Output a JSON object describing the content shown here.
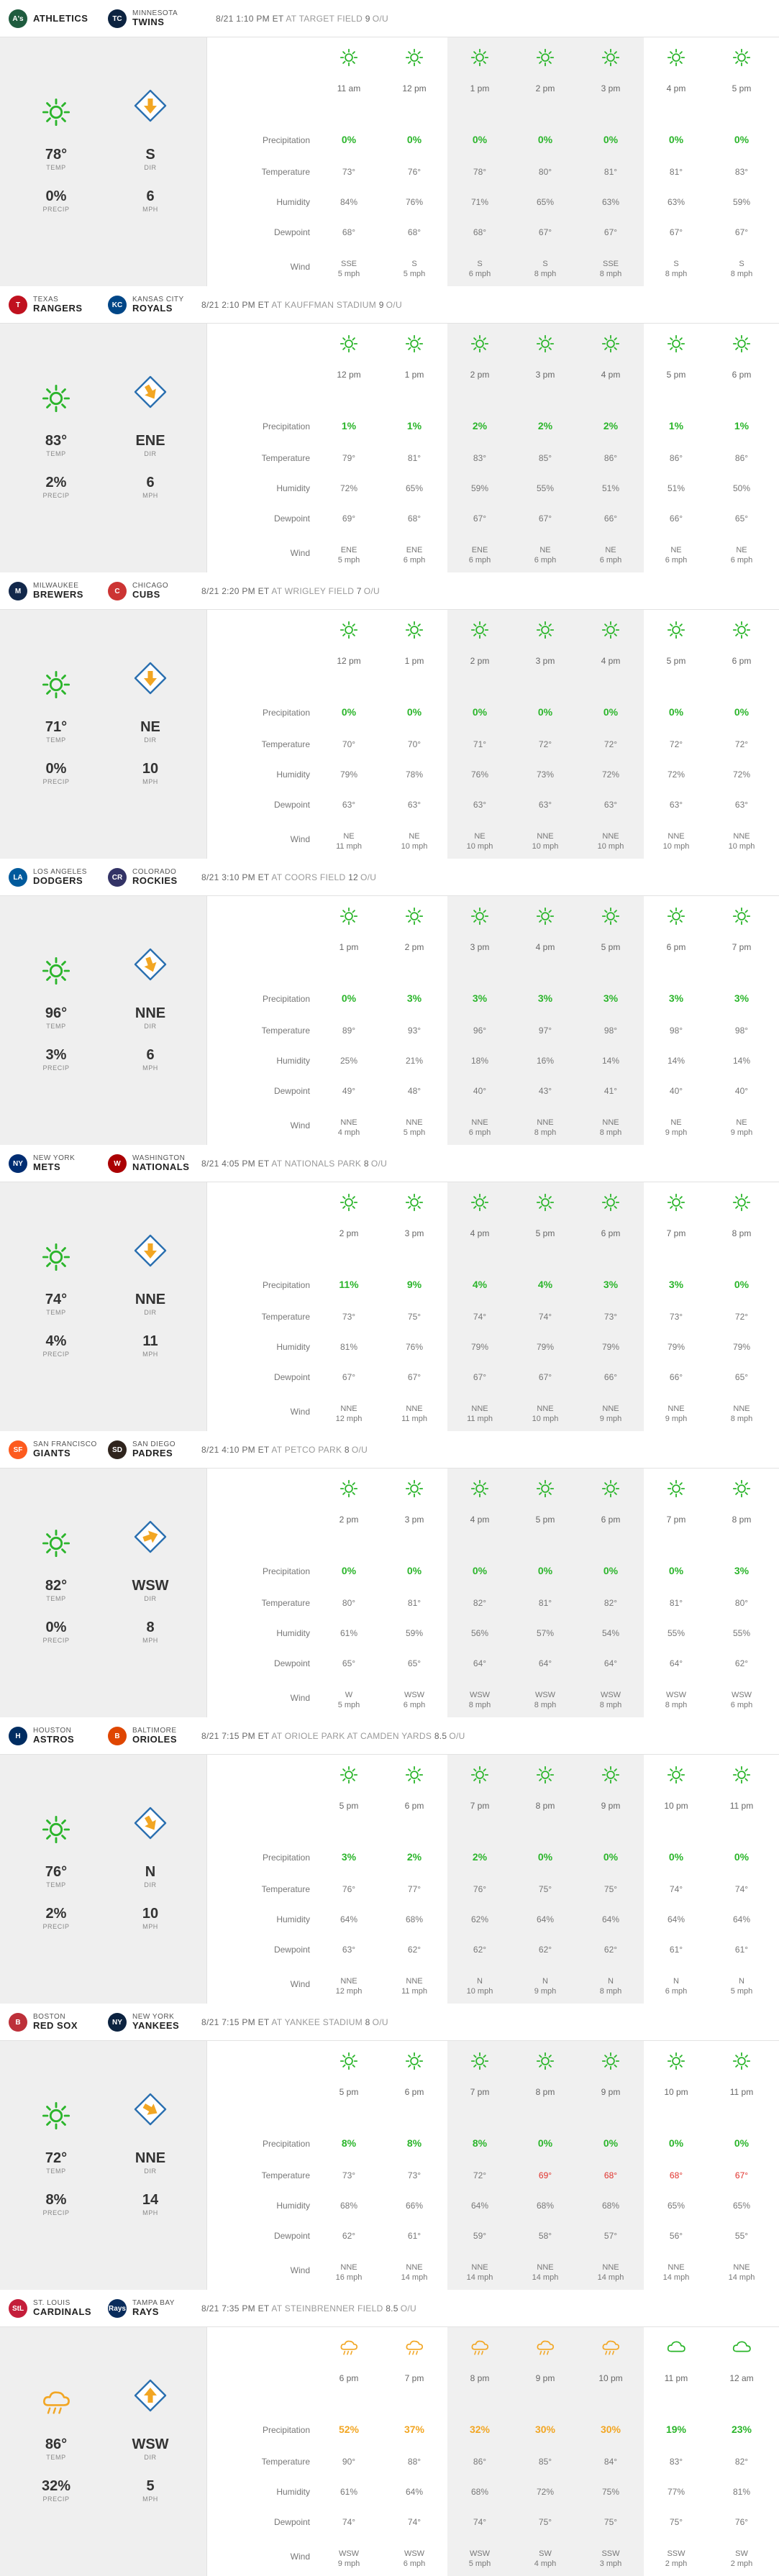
{
  "labels": {
    "temp": "TEMP",
    "precip": "PRECIP",
    "dir": "DIR",
    "mph": "MPH",
    "ou": "O/U",
    "rows": [
      "Precipitation",
      "Temperature",
      "Humidity",
      "Dewpoint",
      "Wind"
    ]
  },
  "colors": {
    "green": "#2bb52b",
    "orange": "#f2a623",
    "red": "#e0302a"
  },
  "games": [
    {
      "away": {
        "city": "",
        "nick": "ATHLETICS",
        "abbr": "A's",
        "color": "#1f5c3f"
      },
      "home": {
        "city": "MINNESOTA",
        "nick": "TWINS",
        "abbr": "TC",
        "color": "#0c2340"
      },
      "datetime": "8/21 1:10 PM ET",
      "venue": "AT TARGET FIELD",
      "ou": "9",
      "icon": "sun",
      "temp": "78°",
      "precip": "0%",
      "dir": "S",
      "mph": "6",
      "arrow": 0,
      "shade": [
        2,
        5
      ],
      "hours": [
        {
          "t": "11 am",
          "p": "0%",
          "tp": "73°",
          "h": "84%",
          "d": "68°",
          "w1": "SSE",
          "w2": "5 mph",
          "i": "sun"
        },
        {
          "t": "12 pm",
          "p": "0%",
          "tp": "76°",
          "h": "76%",
          "d": "68°",
          "w1": "S",
          "w2": "5 mph",
          "i": "sun"
        },
        {
          "t": "1 pm",
          "p": "0%",
          "tp": "78°",
          "h": "71%",
          "d": "68°",
          "w1": "S",
          "w2": "6 mph",
          "i": "sun"
        },
        {
          "t": "2 pm",
          "p": "0%",
          "tp": "80°",
          "h": "65%",
          "d": "67°",
          "w1": "S",
          "w2": "8 mph",
          "i": "sun"
        },
        {
          "t": "3 pm",
          "p": "0%",
          "tp": "81°",
          "h": "63%",
          "d": "67°",
          "w1": "SSE",
          "w2": "8 mph",
          "i": "sun"
        },
        {
          "t": "4 pm",
          "p": "0%",
          "tp": "81°",
          "h": "63%",
          "d": "67°",
          "w1": "S",
          "w2": "8 mph",
          "i": "sun"
        },
        {
          "t": "5 pm",
          "p": "0%",
          "tp": "83°",
          "h": "59%",
          "d": "67°",
          "w1": "S",
          "w2": "8 mph",
          "i": "sun"
        }
      ]
    },
    {
      "away": {
        "city": "TEXAS",
        "nick": "RANGERS",
        "abbr": "T",
        "color": "#c0111f"
      },
      "home": {
        "city": "KANSAS CITY",
        "nick": "ROYALS",
        "abbr": "KC",
        "color": "#004687"
      },
      "datetime": "8/21 2:10 PM ET",
      "venue": "AT KAUFFMAN STADIUM",
      "ou": "9",
      "icon": "sun",
      "temp": "83°",
      "precip": "2%",
      "dir": "ENE",
      "mph": "6",
      "arrow": -30,
      "shade": [
        2,
        5
      ],
      "hours": [
        {
          "t": "12 pm",
          "p": "1%",
          "tp": "79°",
          "h": "72%",
          "d": "69°",
          "w1": "ENE",
          "w2": "5 mph",
          "i": "sun"
        },
        {
          "t": "1 pm",
          "p": "1%",
          "tp": "81°",
          "h": "65%",
          "d": "68°",
          "w1": "ENE",
          "w2": "6 mph",
          "i": "sun"
        },
        {
          "t": "2 pm",
          "p": "2%",
          "tp": "83°",
          "h": "59%",
          "d": "67°",
          "w1": "ENE",
          "w2": "6 mph",
          "i": "sun"
        },
        {
          "t": "3 pm",
          "p": "2%",
          "tp": "85°",
          "h": "55%",
          "d": "67°",
          "w1": "NE",
          "w2": "6 mph",
          "i": "sun"
        },
        {
          "t": "4 pm",
          "p": "2%",
          "tp": "86°",
          "h": "51%",
          "d": "66°",
          "w1": "NE",
          "w2": "6 mph",
          "i": "sun"
        },
        {
          "t": "5 pm",
          "p": "1%",
          "tp": "86°",
          "h": "51%",
          "d": "66°",
          "w1": "NE",
          "w2": "6 mph",
          "i": "sun"
        },
        {
          "t": "6 pm",
          "p": "1%",
          "tp": "86°",
          "h": "50%",
          "d": "65°",
          "w1": "NE",
          "w2": "6 mph",
          "i": "sun"
        }
      ]
    },
    {
      "away": {
        "city": "MILWAUKEE",
        "nick": "BREWERS",
        "abbr": "M",
        "color": "#12284b"
      },
      "home": {
        "city": "CHICAGO",
        "nick": "CUBS",
        "abbr": "C",
        "color": "#cc3433"
      },
      "datetime": "8/21 2:20 PM ET",
      "venue": "AT WRIGLEY FIELD",
      "ou": "7",
      "icon": "sun",
      "temp": "71°",
      "precip": "0%",
      "dir": "NE",
      "mph": "10",
      "arrow": 0,
      "shade": [
        2,
        5
      ],
      "hours": [
        {
          "t": "12 pm",
          "p": "0%",
          "tp": "70°",
          "h": "79%",
          "d": "63°",
          "w1": "NE",
          "w2": "11 mph",
          "i": "sun"
        },
        {
          "t": "1 pm",
          "p": "0%",
          "tp": "70°",
          "h": "78%",
          "d": "63°",
          "w1": "NE",
          "w2": "10 mph",
          "i": "sun"
        },
        {
          "t": "2 pm",
          "p": "0%",
          "tp": "71°",
          "h": "76%",
          "d": "63°",
          "w1": "NE",
          "w2": "10 mph",
          "i": "sun"
        },
        {
          "t": "3 pm",
          "p": "0%",
          "tp": "72°",
          "h": "73%",
          "d": "63°",
          "w1": "NNE",
          "w2": "10 mph",
          "i": "sun"
        },
        {
          "t": "4 pm",
          "p": "0%",
          "tp": "72°",
          "h": "72%",
          "d": "63°",
          "w1": "NNE",
          "w2": "10 mph",
          "i": "sun"
        },
        {
          "t": "5 pm",
          "p": "0%",
          "tp": "72°",
          "h": "72%",
          "d": "63°",
          "w1": "NNE",
          "w2": "10 mph",
          "i": "sun"
        },
        {
          "t": "6 pm",
          "p": "0%",
          "tp": "72°",
          "h": "72%",
          "d": "63°",
          "w1": "NNE",
          "w2": "10 mph",
          "i": "sun"
        }
      ]
    },
    {
      "away": {
        "city": "LOS ANGELES",
        "nick": "DODGERS",
        "abbr": "LA",
        "color": "#005a9c"
      },
      "home": {
        "city": "COLORADO",
        "nick": "ROCKIES",
        "abbr": "CR",
        "color": "#333366"
      },
      "datetime": "8/21 3:10 PM ET",
      "venue": "AT COORS FIELD",
      "ou": "12",
      "icon": "sun",
      "temp": "96°",
      "precip": "3%",
      "dir": "NNE",
      "mph": "6",
      "arrow": -20,
      "shade": [
        2,
        5
      ],
      "hours": [
        {
          "t": "1 pm",
          "p": "0%",
          "tp": "89°",
          "h": "25%",
          "d": "49°",
          "w1": "NNE",
          "w2": "4 mph",
          "i": "sun"
        },
        {
          "t": "2 pm",
          "p": "3%",
          "tp": "93°",
          "h": "21%",
          "d": "48°",
          "w1": "NNE",
          "w2": "5 mph",
          "i": "sun"
        },
        {
          "t": "3 pm",
          "p": "3%",
          "tp": "96°",
          "h": "18%",
          "d": "40°",
          "w1": "NNE",
          "w2": "6 mph",
          "i": "sun"
        },
        {
          "t": "4 pm",
          "p": "3%",
          "tp": "97°",
          "h": "16%",
          "d": "43°",
          "w1": "NNE",
          "w2": "8 mph",
          "i": "sun"
        },
        {
          "t": "5 pm",
          "p": "3%",
          "tp": "98°",
          "h": "14%",
          "d": "41°",
          "w1": "NNE",
          "w2": "8 mph",
          "i": "sun"
        },
        {
          "t": "6 pm",
          "p": "3%",
          "tp": "98°",
          "h": "14%",
          "d": "40°",
          "w1": "NE",
          "w2": "9 mph",
          "i": "sun"
        },
        {
          "t": "7 pm",
          "p": "3%",
          "tp": "98°",
          "h": "14%",
          "d": "40°",
          "w1": "NE",
          "w2": "9 mph",
          "i": "sun"
        }
      ]
    },
    {
      "away": {
        "city": "NEW YORK",
        "nick": "METS",
        "abbr": "NY",
        "color": "#002d72"
      },
      "home": {
        "city": "WASHINGTON",
        "nick": "NATIONALS",
        "abbr": "W",
        "color": "#ab0003"
      },
      "datetime": "8/21 4:05 PM ET",
      "venue": "AT NATIONALS PARK",
      "ou": "8",
      "icon": "sun",
      "temp": "74°",
      "precip": "4%",
      "dir": "NNE",
      "mph": "11",
      "arrow": 0,
      "shade": [
        2,
        5
      ],
      "hours": [
        {
          "t": "2 pm",
          "p": "11%",
          "tp": "73°",
          "h": "81%",
          "d": "67°",
          "w1": "NNE",
          "w2": "12 mph",
          "i": "sun"
        },
        {
          "t": "3 pm",
          "p": "9%",
          "tp": "75°",
          "h": "76%",
          "d": "67°",
          "w1": "NNE",
          "w2": "11 mph",
          "i": "sun"
        },
        {
          "t": "4 pm",
          "p": "4%",
          "tp": "74°",
          "h": "79%",
          "d": "67°",
          "w1": "NNE",
          "w2": "11 mph",
          "i": "sun"
        },
        {
          "t": "5 pm",
          "p": "4%",
          "tp": "74°",
          "h": "79%",
          "d": "67°",
          "w1": "NNE",
          "w2": "10 mph",
          "i": "sun"
        },
        {
          "t": "6 pm",
          "p": "3%",
          "tp": "73°",
          "h": "79%",
          "d": "66°",
          "w1": "NNE",
          "w2": "9 mph",
          "i": "sun"
        },
        {
          "t": "7 pm",
          "p": "3%",
          "tp": "73°",
          "h": "79%",
          "d": "66°",
          "w1": "NNE",
          "w2": "9 mph",
          "i": "sun"
        },
        {
          "t": "8 pm",
          "p": "0%",
          "tp": "72°",
          "h": "79%",
          "d": "65°",
          "w1": "NNE",
          "w2": "8 mph",
          "i": "sun"
        }
      ]
    },
    {
      "away": {
        "city": "SAN FRANCISCO",
        "nick": "GIANTS",
        "abbr": "SF",
        "color": "#fd5a1e"
      },
      "home": {
        "city": "SAN DIEGO",
        "nick": "PADRES",
        "abbr": "SD",
        "color": "#2f241d"
      },
      "datetime": "8/21 4:10 PM ET",
      "venue": "AT PETCO PARK",
      "ou": "8",
      "icon": "sun",
      "temp": "82°",
      "precip": "0%",
      "dir": "WSW",
      "mph": "8",
      "arrow": -110,
      "shade": [
        2,
        5
      ],
      "hours": [
        {
          "t": "2 pm",
          "p": "0%",
          "tp": "80°",
          "h": "61%",
          "d": "65°",
          "w1": "W",
          "w2": "5 mph",
          "i": "sun"
        },
        {
          "t": "3 pm",
          "p": "0%",
          "tp": "81°",
          "h": "59%",
          "d": "65°",
          "w1": "WSW",
          "w2": "6 mph",
          "i": "sun"
        },
        {
          "t": "4 pm",
          "p": "0%",
          "tp": "82°",
          "h": "56%",
          "d": "64°",
          "w1": "WSW",
          "w2": "8 mph",
          "i": "sun"
        },
        {
          "t": "5 pm",
          "p": "0%",
          "tp": "81°",
          "h": "57%",
          "d": "64°",
          "w1": "WSW",
          "w2": "8 mph",
          "i": "sun"
        },
        {
          "t": "6 pm",
          "p": "0%",
          "tp": "82°",
          "h": "54%",
          "d": "64°",
          "w1": "WSW",
          "w2": "8 mph",
          "i": "sun"
        },
        {
          "t": "7 pm",
          "p": "0%",
          "tp": "81°",
          "h": "55%",
          "d": "64°",
          "w1": "WSW",
          "w2": "8 mph",
          "i": "sun"
        },
        {
          "t": "8 pm",
          "p": "3%",
          "tp": "80°",
          "h": "55%",
          "d": "62°",
          "w1": "WSW",
          "w2": "6 mph",
          "i": "sun"
        }
      ]
    },
    {
      "away": {
        "city": "HOUSTON",
        "nick": "ASTROS",
        "abbr": "H",
        "color": "#002d62"
      },
      "home": {
        "city": "BALTIMORE",
        "nick": "ORIOLES",
        "abbr": "B",
        "color": "#df4601"
      },
      "datetime": "8/21 7:15 PM ET",
      "venue": "AT ORIOLE PARK AT CAMDEN YARDS",
      "ou": "8.5",
      "icon": "sun",
      "temp": "76°",
      "precip": "2%",
      "dir": "N",
      "mph": "10",
      "arrow": -30,
      "shade": [
        2,
        5
      ],
      "hours": [
        {
          "t": "5 pm",
          "p": "3%",
          "tp": "76°",
          "h": "64%",
          "d": "63°",
          "w1": "NNE",
          "w2": "12 mph",
          "i": "sun"
        },
        {
          "t": "6 pm",
          "p": "2%",
          "tp": "77°",
          "h": "68%",
          "d": "62°",
          "w1": "NNE",
          "w2": "11 mph",
          "i": "sun"
        },
        {
          "t": "7 pm",
          "p": "2%",
          "tp": "76°",
          "h": "62%",
          "d": "62°",
          "w1": "N",
          "w2": "10 mph",
          "i": "sun"
        },
        {
          "t": "8 pm",
          "p": "0%",
          "tp": "75°",
          "h": "64%",
          "d": "62°",
          "w1": "N",
          "w2": "9 mph",
          "i": "sun"
        },
        {
          "t": "9 pm",
          "p": "0%",
          "tp": "75°",
          "h": "64%",
          "d": "62°",
          "w1": "N",
          "w2": "8 mph",
          "i": "sun"
        },
        {
          "t": "10 pm",
          "p": "0%",
          "tp": "74°",
          "h": "64%",
          "d": "61°",
          "w1": "N",
          "w2": "6 mph",
          "i": "sun"
        },
        {
          "t": "11 pm",
          "p": "0%",
          "tp": "74°",
          "h": "64%",
          "d": "61°",
          "w1": "N",
          "w2": "5 mph",
          "i": "sun"
        }
      ]
    },
    {
      "away": {
        "city": "BOSTON",
        "nick": "RED SOX",
        "abbr": "B",
        "color": "#bd3039"
      },
      "home": {
        "city": "NEW YORK",
        "nick": "YANKEES",
        "abbr": "NY",
        "color": "#0c2340"
      },
      "datetime": "8/21 7:15 PM ET",
      "venue": "AT YANKEE STADIUM",
      "ou": "8",
      "icon": "sun",
      "temp": "72°",
      "precip": "8%",
      "dir": "NNE",
      "mph": "14",
      "arrow": -60,
      "shade": [
        2,
        5
      ],
      "hours": [
        {
          "t": "5 pm",
          "p": "8%",
          "tp": "73°",
          "h": "68%",
          "d": "62°",
          "w1": "NNE",
          "w2": "16 mph",
          "i": "sun"
        },
        {
          "t": "6 pm",
          "p": "8%",
          "tp": "73°",
          "h": "66%",
          "d": "61°",
          "w1": "NNE",
          "w2": "14 mph",
          "i": "sun"
        },
        {
          "t": "7 pm",
          "p": "8%",
          "tp": "72°",
          "h": "64%",
          "d": "59°",
          "w1": "NNE",
          "w2": "14 mph",
          "i": "sun"
        },
        {
          "t": "8 pm",
          "p": "0%",
          "tp": "69°",
          "h": "68%",
          "d": "58°",
          "w1": "NNE",
          "w2": "14 mph",
          "i": "sun",
          "tc": "red"
        },
        {
          "t": "9 pm",
          "p": "0%",
          "tp": "68°",
          "h": "68%",
          "d": "57°",
          "w1": "NNE",
          "w2": "14 mph",
          "i": "sun",
          "tc": "red"
        },
        {
          "t": "10 pm",
          "p": "0%",
          "tp": "68°",
          "h": "65%",
          "d": "56°",
          "w1": "NNE",
          "w2": "14 mph",
          "i": "sun",
          "tc": "red"
        },
        {
          "t": "11 pm",
          "p": "0%",
          "tp": "67°",
          "h": "65%",
          "d": "55°",
          "w1": "NNE",
          "w2": "14 mph",
          "i": "sun",
          "tc": "red"
        }
      ]
    },
    {
      "away": {
        "city": "ST. LOUIS",
        "nick": "CARDINALS",
        "abbr": "StL",
        "color": "#c41e3a"
      },
      "home": {
        "city": "TAMPA BAY",
        "nick": "RAYS",
        "abbr": "Rays",
        "color": "#092c5c"
      },
      "datetime": "8/21 7:35 PM ET",
      "venue": "AT STEINBRENNER FIELD",
      "ou": "8.5",
      "icon": "rain",
      "temp": "86°",
      "precip": "32%",
      "dir": "WSW",
      "mph": "5",
      "arrow": 180,
      "shade": [
        2,
        5
      ],
      "hours": [
        {
          "t": "6 pm",
          "p": "52%",
          "tp": "90°",
          "h": "61%",
          "d": "74°",
          "w1": "WSW",
          "w2": "9 mph",
          "i": "rain",
          "pc": "orange"
        },
        {
          "t": "7 pm",
          "p": "37%",
          "tp": "88°",
          "h": "64%",
          "d": "74°",
          "w1": "WSW",
          "w2": "6 mph",
          "i": "rain",
          "pc": "orange"
        },
        {
          "t": "8 pm",
          "p": "32%",
          "tp": "86°",
          "h": "68%",
          "d": "74°",
          "w1": "WSW",
          "w2": "5 mph",
          "i": "rain",
          "pc": "orange"
        },
        {
          "t": "9 pm",
          "p": "30%",
          "tp": "85°",
          "h": "72%",
          "d": "75°",
          "w1": "SW",
          "w2": "4 mph",
          "i": "rain",
          "pc": "orange"
        },
        {
          "t": "10 pm",
          "p": "30%",
          "tp": "84°",
          "h": "75%",
          "d": "75°",
          "w1": "SSW",
          "w2": "3 mph",
          "i": "rain",
          "pc": "orange"
        },
        {
          "t": "11 pm",
          "p": "19%",
          "tp": "83°",
          "h": "77%",
          "d": "75°",
          "w1": "SSW",
          "w2": "2 mph",
          "i": "cloud"
        },
        {
          "t": "12 am",
          "p": "23%",
          "tp": "82°",
          "h": "81%",
          "d": "76°",
          "w1": "SW",
          "w2": "2 mph",
          "i": "cloud"
        }
      ]
    }
  ]
}
